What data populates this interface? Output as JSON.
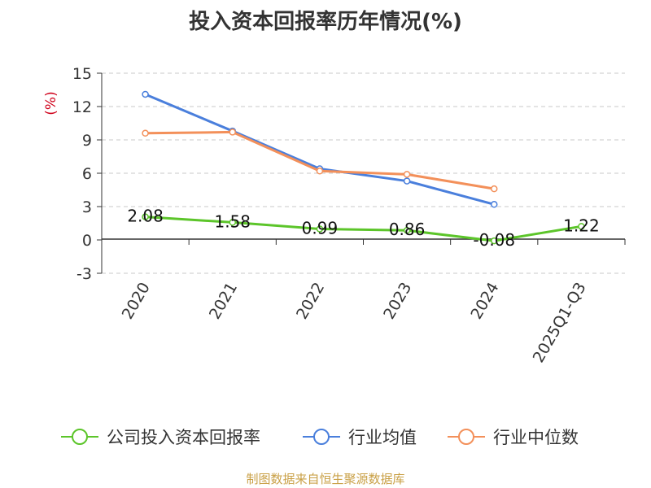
{
  "chart_data": {
    "type": "line",
    "title": "投入资本回报率历年情况(%)",
    "ylabel": "(%)",
    "categories": [
      "2020",
      "2021",
      "2022",
      "2023",
      "2024",
      "2025Q1-Q3"
    ],
    "ylim": [
      -3,
      15
    ],
    "yticks": [
      -3,
      0,
      3,
      6,
      9,
      12,
      15
    ],
    "grid": true,
    "legend_position": "bottom",
    "series": [
      {
        "name": "公司投入资本回报率",
        "color": "#5cc52a",
        "values": [
          2.08,
          1.58,
          0.99,
          0.86,
          -0.08,
          1.22
        ],
        "labels": [
          "2.08",
          "1.58",
          "0.99",
          "0.86",
          "-0.08",
          "1.22"
        ]
      },
      {
        "name": "行业均值",
        "color": "#4a7fdc",
        "values": [
          13.1,
          9.8,
          6.4,
          5.3,
          3.2,
          null
        ]
      },
      {
        "name": "行业中位数",
        "color": "#f3905a",
        "values": [
          9.6,
          9.7,
          6.2,
          5.9,
          4.6,
          null
        ]
      }
    ]
  },
  "source": "制图数据来自恒生聚源数据库"
}
